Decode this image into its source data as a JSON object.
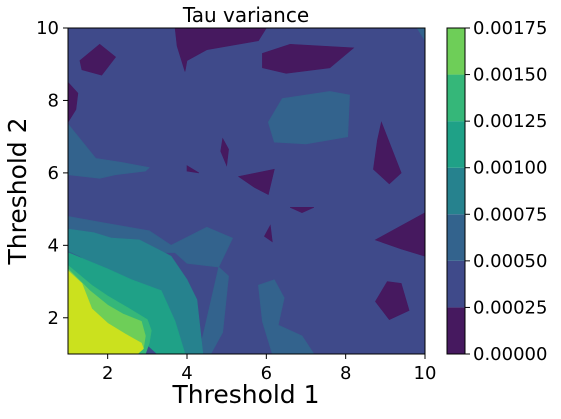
{
  "chart_data": {
    "type": "contourf",
    "title": "Tau variance",
    "xlabel": "Threshold 1",
    "ylabel": "Threshold 2",
    "xlim": [
      1,
      10
    ],
    "ylim": [
      1,
      10
    ],
    "x_ticks": [
      2,
      4,
      6,
      8,
      10
    ],
    "y_ticks": [
      2,
      4,
      6,
      8,
      10
    ],
    "colorbar": {
      "levels": [
        0.0,
        0.00025,
        0.0005,
        0.00075,
        0.001,
        0.00125,
        0.0015,
        0.00175
      ],
      "tick_labels": [
        "0.00000",
        "0.00025",
        "0.00050",
        "0.00075",
        "0.00100",
        "0.00125",
        "0.00150",
        "0.00175"
      ],
      "colors": [
        "#46195f",
        "#3f4a8a",
        "#33638d",
        "#26828e",
        "#1fa187",
        "#35b779",
        "#6ece58",
        "#cbe11e"
      ]
    },
    "grid": false,
    "regions": [
      {
        "level_index": 1,
        "points": [
          [
            1,
            1
          ],
          [
            10,
            1
          ],
          [
            10,
            10
          ],
          [
            1,
            10
          ]
        ]
      },
      {
        "level_index": 0,
        "points": [
          [
            3.7,
            10
          ],
          [
            6.0,
            10
          ],
          [
            5.8,
            9.65
          ],
          [
            4.5,
            9.4
          ],
          [
            4.0,
            9.1
          ],
          [
            3.95,
            8.8
          ],
          [
            3.75,
            9.5
          ]
        ]
      },
      {
        "level_index": 0,
        "points": [
          [
            1.3,
            9.1
          ],
          [
            1.8,
            9.55
          ],
          [
            2.2,
            9.2
          ],
          [
            1.85,
            8.7
          ],
          [
            1.35,
            8.85
          ]
        ]
      },
      {
        "level_index": 0,
        "points": [
          [
            5.9,
            9.3
          ],
          [
            6.6,
            9.55
          ],
          [
            8.2,
            9.45
          ],
          [
            7.6,
            8.9
          ],
          [
            6.5,
            8.75
          ],
          [
            5.9,
            8.9
          ]
        ]
      },
      {
        "level_index": 0,
        "points": [
          [
            1,
            8.5
          ],
          [
            1.25,
            8.2
          ],
          [
            1.2,
            7.75
          ],
          [
            1,
            7.4
          ]
        ]
      },
      {
        "level_index": 0,
        "points": [
          [
            8.9,
            7.4
          ],
          [
            9.4,
            6.0
          ],
          [
            9.1,
            5.7
          ],
          [
            8.7,
            6.1
          ],
          [
            8.8,
            6.9
          ]
        ]
      },
      {
        "level_index": 0,
        "points": [
          [
            4.9,
            6.95
          ],
          [
            5.05,
            6.65
          ],
          [
            5.0,
            6.2
          ],
          [
            4.85,
            6.6
          ]
        ]
      },
      {
        "level_index": 0,
        "points": [
          [
            5.3,
            5.9
          ],
          [
            6.2,
            6.1
          ],
          [
            6.05,
            5.4
          ],
          [
            5.7,
            5.6
          ]
        ]
      },
      {
        "level_index": 0,
        "points": [
          [
            4.0,
            6.05
          ],
          [
            4.3,
            6.0
          ],
          [
            4.0,
            6.2
          ]
        ]
      },
      {
        "level_index": 0,
        "points": [
          [
            6.6,
            5.05
          ],
          [
            7.2,
            5.05
          ],
          [
            6.9,
            4.9
          ]
        ]
      },
      {
        "level_index": 0,
        "points": [
          [
            5.95,
            4.25
          ],
          [
            6.1,
            4.55
          ],
          [
            6.15,
            4.1
          ]
        ]
      },
      {
        "level_index": 0,
        "points": [
          [
            8.75,
            4.15
          ],
          [
            10,
            4.9
          ],
          [
            10,
            3.7
          ],
          [
            9.4,
            3.9
          ]
        ]
      },
      {
        "level_index": 0,
        "points": [
          [
            8.75,
            2.45
          ],
          [
            9.1,
            1.95
          ],
          [
            9.6,
            2.2
          ],
          [
            9.4,
            2.95
          ],
          [
            9.05,
            3.0
          ]
        ]
      },
      {
        "level_index": 2,
        "points": [
          [
            1,
            7.35
          ],
          [
            1.7,
            6.4
          ],
          [
            2.3,
            6.3
          ],
          [
            3.05,
            6.15
          ],
          [
            2.95,
            6.05
          ],
          [
            2.2,
            5.95
          ],
          [
            1.8,
            5.85
          ],
          [
            1,
            5.95
          ]
        ]
      },
      {
        "level_index": 2,
        "points": [
          [
            6.4,
            8.05
          ],
          [
            7.6,
            8.25
          ],
          [
            8.1,
            8.15
          ],
          [
            8.05,
            7.0
          ],
          [
            7.0,
            6.8
          ],
          [
            6.2,
            6.85
          ],
          [
            6.05,
            7.4
          ]
        ]
      },
      {
        "level_index": 2,
        "points": [
          [
            9.8,
            10
          ],
          [
            10,
            10
          ],
          [
            10,
            9.65
          ]
        ]
      },
      {
        "level_index": 2,
        "points": [
          [
            1,
            4.8
          ],
          [
            2.0,
            4.6
          ],
          [
            3.05,
            4.4
          ],
          [
            3.6,
            4.0
          ],
          [
            4.5,
            4.5
          ],
          [
            5.15,
            4.2
          ],
          [
            4.8,
            3.4
          ],
          [
            4.0,
            3.5
          ],
          [
            3.7,
            3.8
          ],
          [
            3.2,
            3.8
          ],
          [
            2.0,
            3.6
          ],
          [
            1,
            3.5
          ]
        ]
      },
      {
        "level_index": 2,
        "points": [
          [
            4.6,
            1
          ],
          [
            4.9,
            1.6
          ],
          [
            5.05,
            3.15
          ],
          [
            4.8,
            3.4
          ],
          [
            4.4,
            1.5
          ],
          [
            4.25,
            1
          ]
        ]
      },
      {
        "level_index": 2,
        "points": [
          [
            5.8,
            2.9
          ],
          [
            6.2,
            3.05
          ],
          [
            6.45,
            2.55
          ],
          [
            6.3,
            1.8
          ],
          [
            6.9,
            1.5
          ],
          [
            7.2,
            1
          ],
          [
            6.15,
            1
          ],
          [
            5.9,
            1.9
          ]
        ]
      },
      {
        "level_index": 3,
        "points": [
          [
            1,
            4.45
          ],
          [
            1.65,
            4.35
          ],
          [
            2.1,
            4.2
          ],
          [
            2.8,
            4.15
          ],
          [
            3.25,
            3.9
          ],
          [
            3.6,
            3.7
          ],
          [
            4.0,
            3.05
          ],
          [
            4.25,
            2.5
          ],
          [
            4.4,
            1
          ],
          [
            3.95,
            1
          ],
          [
            3.7,
            1.65
          ],
          [
            3.2,
            2.1
          ],
          [
            2.85,
            2.3
          ],
          [
            2.05,
            3.0
          ],
          [
            1.3,
            3.7
          ],
          [
            1,
            3.85
          ]
        ]
      },
      {
        "level_index": 4,
        "points": [
          [
            1,
            3.8
          ],
          [
            2.0,
            3.35
          ],
          [
            2.6,
            3.05
          ],
          [
            3.35,
            2.75
          ],
          [
            3.7,
            1.9
          ],
          [
            3.95,
            1
          ],
          [
            3.25,
            1
          ],
          [
            3.0,
            1.25
          ],
          [
            2.85,
            1.65
          ],
          [
            2.55,
            1.8
          ],
          [
            2.0,
            2.1
          ],
          [
            1.55,
            2.55
          ],
          [
            1,
            2.7
          ]
        ]
      },
      {
        "level_index": 5,
        "points": [
          [
            1,
            3.45
          ],
          [
            1.6,
            2.9
          ],
          [
            2.0,
            2.6
          ],
          [
            2.55,
            2.25
          ],
          [
            3.0,
            1.95
          ],
          [
            3.1,
            1.65
          ],
          [
            3.05,
            1.3
          ],
          [
            2.95,
            1
          ],
          [
            2.05,
            1
          ],
          [
            1.8,
            1.15
          ],
          [
            1.3,
            1.45
          ],
          [
            1,
            1.55
          ]
        ]
      },
      {
        "level_index": 6,
        "points": [
          [
            1,
            3.35
          ],
          [
            1.55,
            2.75
          ],
          [
            2.0,
            2.35
          ],
          [
            2.4,
            2.1
          ],
          [
            2.85,
            1.9
          ],
          [
            2.95,
            1.5
          ],
          [
            2.9,
            1.15
          ],
          [
            2.75,
            1
          ],
          [
            1,
            1
          ]
        ]
      },
      {
        "level_index": 7,
        "points": [
          [
            1,
            3.3
          ],
          [
            1.35,
            2.95
          ],
          [
            1.6,
            2.25
          ],
          [
            2.0,
            1.85
          ],
          [
            2.45,
            1.55
          ],
          [
            2.85,
            1.3
          ],
          [
            2.9,
            1.15
          ],
          [
            2.75,
            1
          ],
          [
            1,
            1
          ]
        ]
      }
    ]
  }
}
